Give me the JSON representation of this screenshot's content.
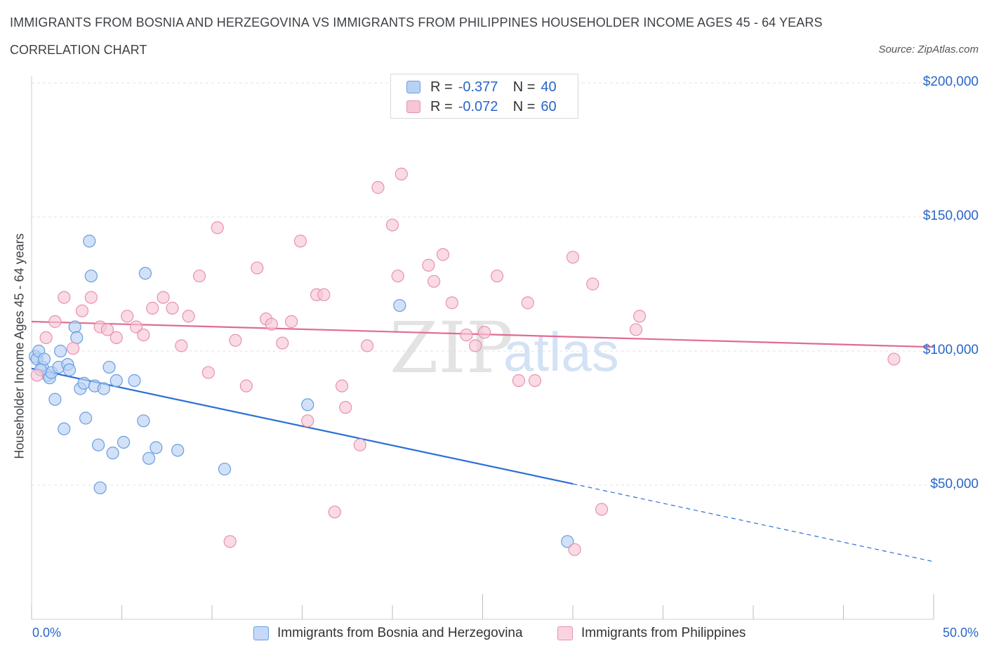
{
  "title": "IMMIGRANTS FROM BOSNIA AND HERZEGOVINA VS IMMIGRANTS FROM PHILIPPINES HOUSEHOLDER INCOME AGES 45 - 64 YEARS",
  "subtitle": "CORRELATION CHART",
  "source": "Source: ZipAtlas.com",
  "watermark": {
    "zip": "ZIP",
    "atlas": "atlas"
  },
  "legend": {
    "rows": [
      {
        "r_label": "R =",
        "r_value": "-0.377",
        "n_label": "N =",
        "n_value": "40"
      },
      {
        "r_label": "R =",
        "r_value": "-0.072",
        "n_label": "N =",
        "n_value": "60"
      }
    ]
  },
  "colors": {
    "blue_fill": "#b9d1f5",
    "blue_stroke": "#6a9de0",
    "blue_line": "#2a6fd6",
    "pink_fill": "#f7c6d5",
    "pink_stroke": "#e693ad",
    "pink_line": "#e06b93",
    "axis_text": "#2a66c8",
    "grid": "#e3e3e3"
  },
  "chart_data": {
    "type": "scatter",
    "title": "IMMIGRANTS FROM BOSNIA AND HERZEGOVINA VS IMMIGRANTS FROM PHILIPPINES HOUSEHOLDER INCOME AGES 45 - 64 YEARS",
    "xlabel": "",
    "ylabel": "Householder Income Ages 45 - 64 years",
    "xlim": [
      0,
      50
    ],
    "ylim": [
      0,
      200000
    ],
    "x_tick_labels": [
      "0.0%",
      "50.0%"
    ],
    "y_ticks": [
      50000,
      100000,
      150000,
      200000
    ],
    "y_tick_labels": [
      "$50,000",
      "$100,000",
      "$150,000",
      "$200,000"
    ],
    "grid": true,
    "legend_position": "top-center",
    "series": [
      {
        "name": "Immigrants from Bosnia and Herzegovina",
        "color": "blue",
        "points": [
          [
            0.2,
            98000
          ],
          [
            0.3,
            97000
          ],
          [
            0.4,
            100000
          ],
          [
            0.6,
            94000
          ],
          [
            0.7,
            97000
          ],
          [
            0.9,
            91000
          ],
          [
            1.0,
            90000
          ],
          [
            1.1,
            92000
          ],
          [
            1.3,
            82000
          ],
          [
            1.5,
            94000
          ],
          [
            1.6,
            100000
          ],
          [
            1.8,
            71000
          ],
          [
            2.0,
            95000
          ],
          [
            2.1,
            93000
          ],
          [
            2.4,
            109000
          ],
          [
            2.5,
            105000
          ],
          [
            2.7,
            86000
          ],
          [
            2.9,
            88000
          ],
          [
            3.0,
            75000
          ],
          [
            3.2,
            141000
          ],
          [
            3.3,
            128000
          ],
          [
            3.5,
            87000
          ],
          [
            3.7,
            65000
          ],
          [
            3.8,
            49000
          ],
          [
            4.0,
            86000
          ],
          [
            4.3,
            94000
          ],
          [
            4.5,
            62000
          ],
          [
            4.7,
            89000
          ],
          [
            5.1,
            66000
          ],
          [
            5.7,
            89000
          ],
          [
            6.2,
            74000
          ],
          [
            6.3,
            129000
          ],
          [
            6.5,
            60000
          ],
          [
            6.9,
            64000
          ],
          [
            8.1,
            63000
          ],
          [
            10.7,
            56000
          ],
          [
            15.3,
            80000
          ],
          [
            20.4,
            117000
          ],
          [
            29.7,
            29000
          ],
          [
            0.5,
            93000
          ]
        ]
      },
      {
        "name": "Immigrants from Philippines",
        "color": "pink",
        "points": [
          [
            0.3,
            91000
          ],
          [
            0.8,
            105000
          ],
          [
            1.3,
            111000
          ],
          [
            1.8,
            120000
          ],
          [
            2.3,
            101000
          ],
          [
            2.8,
            115000
          ],
          [
            3.3,
            120000
          ],
          [
            3.8,
            109000
          ],
          [
            4.2,
            108000
          ],
          [
            4.7,
            105000
          ],
          [
            5.3,
            113000
          ],
          [
            5.8,
            109000
          ],
          [
            6.2,
            106000
          ],
          [
            6.7,
            116000
          ],
          [
            7.3,
            120000
          ],
          [
            7.8,
            116000
          ],
          [
            8.3,
            102000
          ],
          [
            8.7,
            113000
          ],
          [
            9.3,
            128000
          ],
          [
            9.8,
            92000
          ],
          [
            10.3,
            146000
          ],
          [
            11.0,
            29000
          ],
          [
            11.3,
            104000
          ],
          [
            11.9,
            87000
          ],
          [
            12.5,
            131000
          ],
          [
            13.0,
            112000
          ],
          [
            13.3,
            110000
          ],
          [
            13.9,
            103000
          ],
          [
            14.4,
            111000
          ],
          [
            14.9,
            141000
          ],
          [
            15.3,
            74000
          ],
          [
            15.8,
            121000
          ],
          [
            16.2,
            121000
          ],
          [
            16.8,
            40000
          ],
          [
            17.2,
            87000
          ],
          [
            17.4,
            79000
          ],
          [
            18.2,
            65000
          ],
          [
            18.6,
            102000
          ],
          [
            19.2,
            161000
          ],
          [
            20.0,
            147000
          ],
          [
            20.3,
            128000
          ],
          [
            20.5,
            166000
          ],
          [
            22.0,
            132000
          ],
          [
            22.3,
            126000
          ],
          [
            22.8,
            136000
          ],
          [
            23.3,
            118000
          ],
          [
            24.1,
            106000
          ],
          [
            24.6,
            102000
          ],
          [
            25.1,
            107000
          ],
          [
            25.8,
            128000
          ],
          [
            27.0,
            89000
          ],
          [
            27.5,
            118000
          ],
          [
            27.9,
            89000
          ],
          [
            30.0,
            135000
          ],
          [
            30.1,
            26000
          ],
          [
            31.1,
            125000
          ],
          [
            31.6,
            41000
          ],
          [
            33.5,
            108000
          ],
          [
            33.7,
            113000
          ],
          [
            47.8,
            97000
          ]
        ]
      }
    ],
    "trend_lines": [
      {
        "series": "Immigrants from Bosnia and Herzegovina",
        "x0": 0,
        "y0": 93500,
        "x1": 30,
        "y1": 50500,
        "dash_x1": 50,
        "dash_y1": 21500
      },
      {
        "series": "Immigrants from Philippines",
        "x0": 0,
        "y0": 111000,
        "x1": 50,
        "y1": 101500
      }
    ]
  }
}
